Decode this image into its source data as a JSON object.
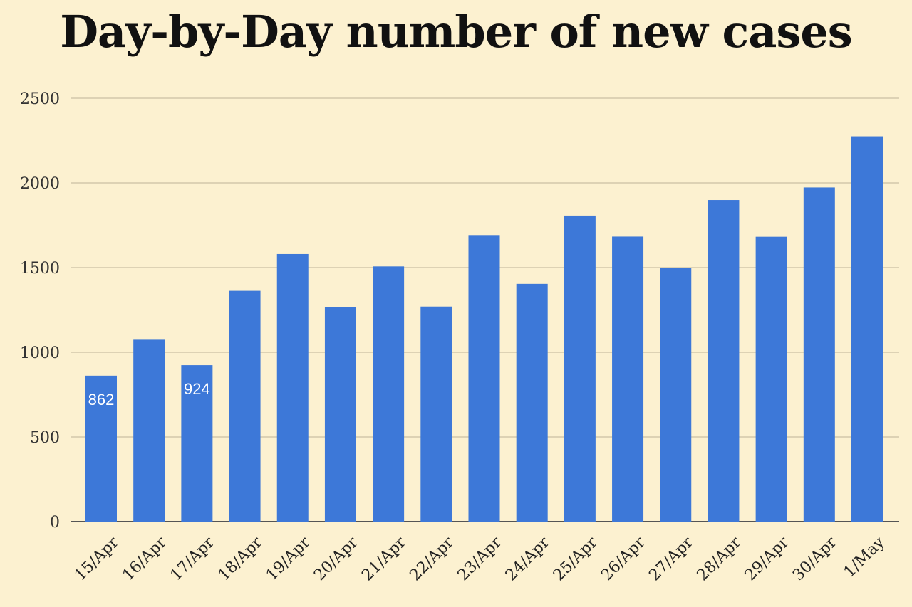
{
  "chart_data": {
    "type": "bar",
    "title": "Day-by-Day number of new cases",
    "xlabel": "",
    "ylabel": "",
    "categories": [
      "15/Apr",
      "16/Apr",
      "17/Apr",
      "18/Apr",
      "19/Apr",
      "20/Apr",
      "21/Apr",
      "22/Apr",
      "23/Apr",
      "24/Apr",
      "25/Apr",
      "26/Apr",
      "27/Apr",
      "28/Apr",
      "29/Apr",
      "30/Apr",
      "1/May"
    ],
    "values": [
      862,
      1074,
      924,
      1363,
      1580,
      1267,
      1507,
      1270,
      1692,
      1404,
      1807,
      1683,
      1497,
      1899,
      1682,
      1973,
      2275
    ],
    "data_labels": [
      "862",
      "",
      "924",
      "",
      "",
      "",
      "",
      "",
      "",
      "",
      "",
      "",
      "",
      "",
      "",
      "",
      ""
    ],
    "ylim": [
      0,
      2500
    ],
    "yticks": [
      0,
      500,
      1000,
      1500,
      2000,
      2500
    ],
    "grid": true,
    "bar_color": "#3d78d8",
    "background_color": "#fcf1d0",
    "grid_color": "#ddd2b4"
  }
}
